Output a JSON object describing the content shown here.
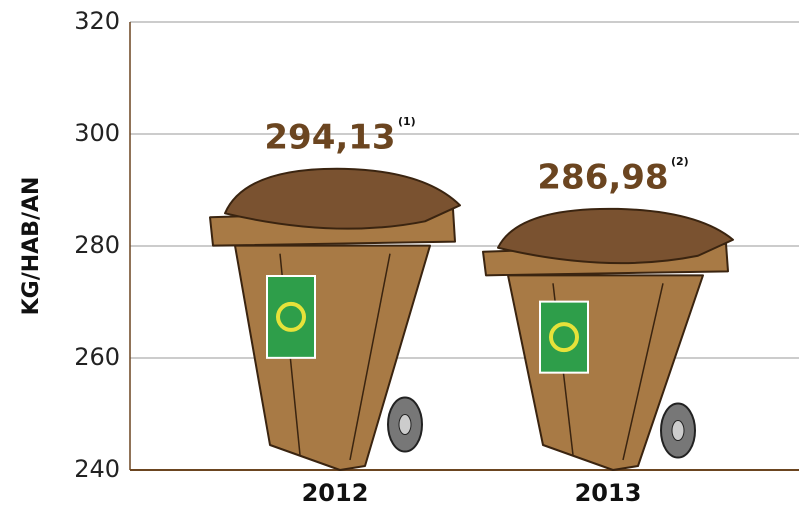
{
  "chart_data": {
    "type": "bar",
    "y_label": "KG/HAB/AN",
    "categories": [
      "2012",
      "2013"
    ],
    "values": [
      294.13,
      286.98
    ],
    "value_labels": [
      "294,13",
      "286,98"
    ],
    "footnote_marks": [
      "(1)",
      "(2)"
    ],
    "color": "#a87a45",
    "ylim": [
      240,
      320
    ],
    "yticks": [
      240,
      260,
      280,
      300,
      320
    ],
    "grid": true
  }
}
